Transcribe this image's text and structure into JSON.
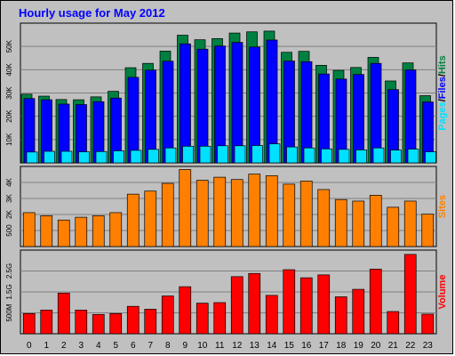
{
  "page": {
    "title": "Hourly usage for May 2012"
  },
  "chart_data": [
    {
      "type": "bar",
      "panel": "hits",
      "categories": [
        "0",
        "1",
        "2",
        "3",
        "4",
        "5",
        "6",
        "7",
        "8",
        "9",
        "10",
        "11",
        "12",
        "13",
        "14",
        "15",
        "16",
        "17",
        "18",
        "19",
        "20",
        "21",
        "22",
        "23"
      ],
      "series": [
        {
          "name": "Hits",
          "color": "#008040",
          "values": [
            28500,
            27700,
            26300,
            26200,
            27400,
            29700,
            39500,
            41300,
            46400,
            53000,
            51100,
            51600,
            53900,
            54400,
            54700,
            45900,
            46300,
            40500,
            38400,
            39600,
            43800,
            34000,
            41500,
            27900
          ]
        },
        {
          "name": "Files",
          "color": "#0000ff",
          "values": [
            26700,
            26200,
            24400,
            24200,
            25400,
            26900,
            35500,
            38500,
            42200,
            49400,
            47200,
            48500,
            50000,
            48100,
            51000,
            42300,
            42000,
            36900,
            34800,
            36700,
            41300,
            30400,
            38600,
            25300
          ]
        },
        {
          "name": "Pages",
          "color": "#00e0ff",
          "values": [
            4500,
            4800,
            4800,
            4600,
            4700,
            5000,
            5200,
            5600,
            6200,
            6900,
            6900,
            7100,
            7100,
            7200,
            7900,
            6600,
            6200,
            5800,
            5600,
            5400,
            6200,
            5300,
            5700,
            4600
          ]
        }
      ],
      "yticks": [
        "10K",
        "20K",
        "30K",
        "40K",
        "50K"
      ],
      "ylim": [
        0,
        58000
      ],
      "legend": [
        {
          "text": "Hits",
          "color": "#008040"
        },
        {
          "text": "Files",
          "color": "#0000ff"
        },
        {
          "text": "Pages",
          "color": "#00e0ff"
        }
      ]
    },
    {
      "type": "bar",
      "panel": "sites",
      "categories": [
        "0",
        "1",
        "2",
        "3",
        "4",
        "5",
        "6",
        "7",
        "8",
        "9",
        "10",
        "11",
        "12",
        "13",
        "14",
        "15",
        "16",
        "17",
        "18",
        "19",
        "20",
        "21",
        "22",
        "23"
      ],
      "series": [
        {
          "name": "Sites",
          "color": "#ff8000",
          "values": [
            2200,
            2000,
            1720,
            1900,
            2000,
            2200,
            3400,
            3600,
            4100,
            5000,
            4300,
            4500,
            4350,
            4700,
            4600,
            4050,
            4250,
            3700,
            3050,
            2950,
            3330,
            2550,
            2950,
            2100
          ]
        }
      ],
      "yticks": [
        "500",
        "2K",
        "3K",
        "4K"
      ],
      "ylim": [
        0,
        5200
      ],
      "legend": [
        {
          "text": "Sites",
          "color": "#ff8000"
        }
      ]
    },
    {
      "type": "bar",
      "panel": "volume",
      "categories": [
        "0",
        "1",
        "2",
        "3",
        "4",
        "5",
        "6",
        "7",
        "8",
        "9",
        "10",
        "11",
        "12",
        "13",
        "14",
        "15",
        "16",
        "17",
        "18",
        "19",
        "20",
        "21",
        "22",
        "23"
      ],
      "series": [
        {
          "name": "Volume",
          "color": "#ff0000",
          "values": [
            0.7,
            0.82,
            1.41,
            0.82,
            0.67,
            0.7,
            0.95,
            0.85,
            1.31,
            1.63,
            1.06,
            1.08,
            1.98,
            2.09,
            1.33,
            2.22,
            1.94,
            2.04,
            1.28,
            1.54,
            2.24,
            0.77,
            2.75,
            0.68
          ]
        }
      ],
      "yticks": [
        "500M",
        "1.5G",
        "2.5G"
      ],
      "ylim": [
        0,
        2.9
      ],
      "legend": [
        {
          "text": "Volume",
          "color": "#ff0000"
        }
      ]
    }
  ]
}
